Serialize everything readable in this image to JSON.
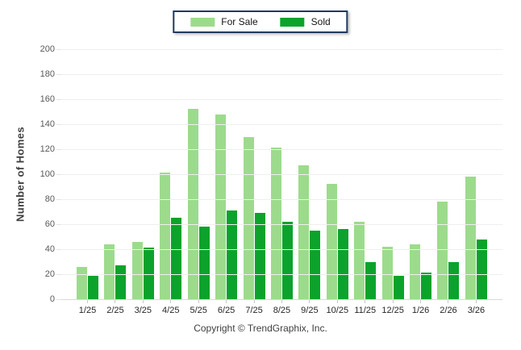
{
  "legend": {
    "border_color": "#1e3a5f"
  },
  "y_axis": {
    "title": "Number of Homes",
    "ticks": [
      0,
      20,
      40,
      60,
      80,
      100,
      120,
      140,
      160,
      180,
      200
    ]
  },
  "footer": {
    "copyright": "Copyright © TrendGraphix, Inc."
  },
  "colors": {
    "for_sale": "#9cdb8c",
    "sold": "#0ba32b",
    "gridline": "#efefef",
    "axis_line": "#d9d9d9"
  },
  "chart_data": {
    "type": "bar",
    "title": "",
    "categories": [
      "1/25",
      "2/25",
      "3/25",
      "4/25",
      "5/25",
      "6/25",
      "7/25",
      "8/25",
      "9/25",
      "10/25",
      "11/25",
      "12/25",
      "1/26",
      "2/26",
      "3/26"
    ],
    "series": [
      {
        "name": "For Sale",
        "color": "#9cdb8c",
        "values": [
          26,
          44,
          46,
          101,
          152,
          148,
          130,
          121,
          107,
          92,
          62,
          42,
          44,
          78,
          98
        ]
      },
      {
        "name": "Sold",
        "color": "#0ba32b",
        "values": [
          19,
          27,
          41,
          65,
          58,
          71,
          69,
          62,
          55,
          56,
          30,
          19,
          21,
          30,
          48
        ]
      }
    ],
    "xlabel": "",
    "ylabel": "Number of Homes",
    "ylim": [
      0,
      200
    ],
    "ytick_step": 20,
    "grid": true,
    "legend_position": "top-center"
  }
}
